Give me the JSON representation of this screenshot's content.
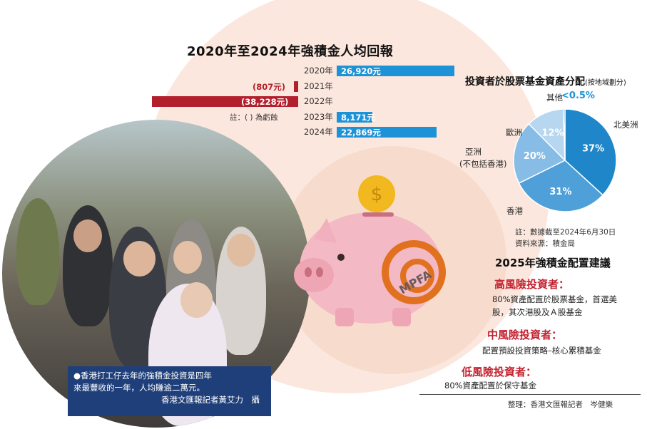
{
  "chart_data": [
    {
      "type": "bar",
      "title": "2020年至2024年強積金人均回報",
      "categories": [
        "2020年",
        "2021年",
        "2022年",
        "2023年",
        "2024年"
      ],
      "values": [
        26920,
        -807,
        -38228,
        8171,
        22869
      ],
      "value_labels": [
        "26,920元",
        "(807元)",
        "(38,228元)",
        "8,171元",
        "22,869元"
      ],
      "note": "註：( ) 為虧蝕",
      "colors": {
        "positive": "#1e92d6",
        "negative": "#b2202d"
      }
    },
    {
      "type": "pie",
      "title": "投資者於股票基金資產分配",
      "subtitle": "(按地域劃分)",
      "categories": [
        "北美洲",
        "香港",
        "亞洲(不包括香港)",
        "歐洲",
        "其他"
      ],
      "values": [
        37,
        31,
        20,
        12,
        0.5
      ],
      "value_labels": [
        "37%",
        "31%",
        "20%",
        "12%",
        "<0.5%"
      ],
      "category_labels": {
        "north_america": "北美洲",
        "hong_kong": "香港",
        "asia_line1": "亞洲",
        "asia_line2": "(不包括香港)",
        "europe": "歐洲",
        "other": "其他"
      },
      "colors": [
        "#1e86c9",
        "#4f9fd8",
        "#86bce6",
        "#b7d6f0",
        "#1e92d6"
      ],
      "notes": [
        "註：數據截至2024年6月30日",
        "資料來源：積金局"
      ]
    }
  ],
  "photo_caption": {
    "line1": "●香港打工仔去年的強積金投資是四年",
    "line2": "來最豐收的一年，人均賺逾二萬元。",
    "credit": "香港文匯報記者黃艾力　攝"
  },
  "recommendations": {
    "title": "2025年強積金配置建議",
    "high": {
      "label": "高風險投資者：",
      "text1": "80%資產配置於股票基金，首選美",
      "text2": "股，其次港股及Ａ股基金"
    },
    "medium": {
      "label": "中風險投資者：",
      "text": "配置預設投資策略–核心累積基金"
    },
    "low": {
      "label": "低風險投資者：",
      "text": "80%資產配置於保守基金"
    }
  },
  "editor": "整理：香港文匯報記者　岑健樂",
  "logo": {
    "text": "MPFA"
  }
}
